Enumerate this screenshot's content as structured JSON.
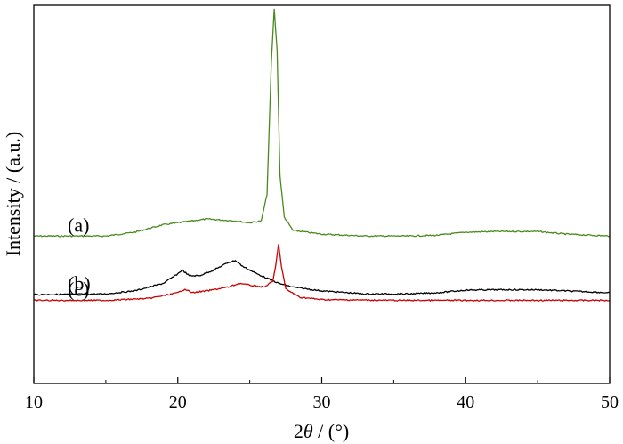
{
  "chart_data": {
    "type": "line",
    "title": "",
    "xlabel": "2θ / (°)",
    "xlabel_prefix": "2",
    "xlabel_symbol": "θ",
    "xlabel_suffix": " / (°)",
    "ylabel": "Intensity / (a.u.)",
    "xlim": [
      10,
      50
    ],
    "ylim": [
      0,
      1
    ],
    "x_ticks": [
      10,
      20,
      30,
      40,
      50
    ],
    "x_tick_labels": [
      "10",
      "20",
      "30",
      "40",
      "50"
    ],
    "grid": false,
    "legend": "none",
    "series": [
      {
        "name": "(a)",
        "color": "#4a8a1c",
        "points": [
          [
            10,
            0.39
          ],
          [
            15,
            0.39
          ],
          [
            17,
            0.4
          ],
          [
            19,
            0.42
          ],
          [
            21,
            0.43
          ],
          [
            22,
            0.435
          ],
          [
            24,
            0.43
          ],
          [
            25,
            0.425
          ],
          [
            25.8,
            0.43
          ],
          [
            26.2,
            0.5
          ],
          [
            26.5,
            0.85
          ],
          [
            26.7,
            0.99
          ],
          [
            26.9,
            0.88
          ],
          [
            27.1,
            0.55
          ],
          [
            27.4,
            0.44
          ],
          [
            28,
            0.405
          ],
          [
            30,
            0.395
          ],
          [
            33,
            0.39
          ],
          [
            36,
            0.39
          ],
          [
            38,
            0.392
          ],
          [
            40,
            0.4
          ],
          [
            42,
            0.402
          ],
          [
            45,
            0.402
          ],
          [
            47,
            0.395
          ],
          [
            50,
            0.39
          ]
        ]
      },
      {
        "name": "(b)",
        "color": "#000000",
        "points": [
          [
            10,
            0.235
          ],
          [
            15,
            0.237
          ],
          [
            17,
            0.245
          ],
          [
            19,
            0.265
          ],
          [
            20,
            0.29
          ],
          [
            20.3,
            0.3
          ],
          [
            20.8,
            0.285
          ],
          [
            21.5,
            0.285
          ],
          [
            22.5,
            0.3
          ],
          [
            23.5,
            0.32
          ],
          [
            24,
            0.325
          ],
          [
            24.5,
            0.31
          ],
          [
            25.5,
            0.29
          ],
          [
            27,
            0.265
          ],
          [
            28,
            0.255
          ],
          [
            30,
            0.245
          ],
          [
            33,
            0.237
          ],
          [
            36,
            0.237
          ],
          [
            38,
            0.24
          ],
          [
            40,
            0.247
          ],
          [
            42,
            0.248
          ],
          [
            45,
            0.248
          ],
          [
            47,
            0.245
          ],
          [
            50,
            0.24
          ]
        ]
      },
      {
        "name": "(c)",
        "color": "#cc0000",
        "points": [
          [
            10,
            0.22
          ],
          [
            15,
            0.22
          ],
          [
            18,
            0.225
          ],
          [
            20,
            0.24
          ],
          [
            20.5,
            0.25
          ],
          [
            21,
            0.24
          ],
          [
            22,
            0.245
          ],
          [
            23.5,
            0.255
          ],
          [
            24.3,
            0.265
          ],
          [
            25,
            0.26
          ],
          [
            26,
            0.255
          ],
          [
            26.6,
            0.27
          ],
          [
            26.8,
            0.31
          ],
          [
            27.0,
            0.37
          ],
          [
            27.2,
            0.31
          ],
          [
            27.5,
            0.25
          ],
          [
            28.5,
            0.228
          ],
          [
            30,
            0.222
          ],
          [
            35,
            0.22
          ],
          [
            40,
            0.22
          ],
          [
            45,
            0.22
          ],
          [
            50,
            0.22
          ]
        ]
      }
    ]
  }
}
